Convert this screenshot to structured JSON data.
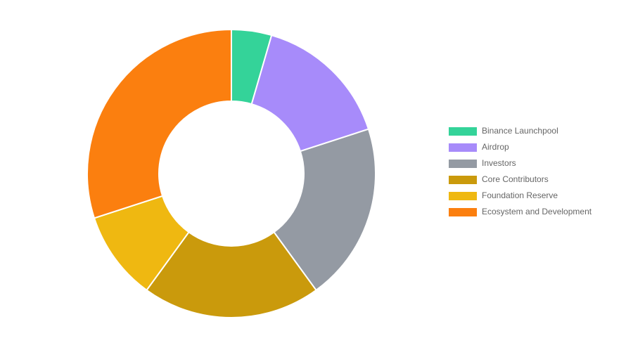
{
  "chart_data": {
    "type": "doughnut",
    "categories": [
      "Binance Launchpool",
      "Airdrop",
      "Investors",
      "Core Contributors",
      "Foundation Reserve",
      "Ecosystem and Development"
    ],
    "values": [
      4.5,
      15.5,
      20,
      20,
      10,
      30
    ],
    "colors": [
      "#34d399",
      "#a78bfa",
      "#949aa3",
      "#ca9a0c",
      "#efb811",
      "#fb7f0f"
    ],
    "legend": "right"
  }
}
